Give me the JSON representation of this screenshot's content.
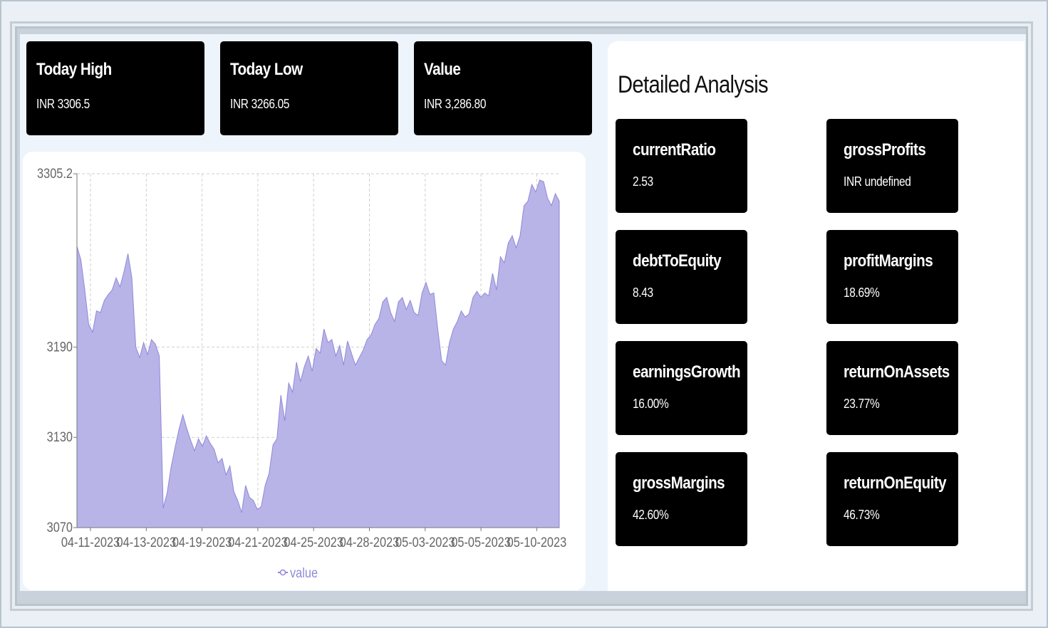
{
  "summary_cards": [
    {
      "title": "Today High",
      "value": "INR 3306.5"
    },
    {
      "title": "Today Low",
      "value": "INR 3266.05"
    },
    {
      "title": "Value",
      "value": "INR 3,286.80"
    }
  ],
  "analysis": {
    "title": "Detailed Analysis",
    "metrics": [
      {
        "label": "currentRatio",
        "value": "2.53"
      },
      {
        "label": "grossProfits",
        "value": "INR undefined"
      },
      {
        "label": "debtToEquity",
        "value": "8.43"
      },
      {
        "label": "profitMargins",
        "value": "18.69%"
      },
      {
        "label": "earningsGrowth",
        "value": "16.00%"
      },
      {
        "label": "returnOnAssets",
        "value": "23.77%"
      },
      {
        "label": "grossMargins",
        "value": "42.60%"
      },
      {
        "label": "returnOnEquity",
        "value": "46.73%"
      }
    ]
  },
  "colors": {
    "area_fill": "#b8b4e8",
    "area_stroke": "#8f88d8",
    "card_bg": "#000000"
  },
  "chart_data": {
    "type": "area",
    "title": "",
    "xlabel": "",
    "ylabel": "",
    "y_ticks": [
      "3070",
      "3130",
      "3190",
      "3305.2"
    ],
    "ylim": [
      3070,
      3305.2
    ],
    "x_ticks": [
      "04-11-2023",
      "04-13-2023",
      "04-19-2023",
      "04-21-2023",
      "04-25-2023",
      "04-28-2023",
      "05-03-2023",
      "05-05-2023",
      "05-10-2023"
    ],
    "grid": true,
    "legend": "bottom",
    "series": [
      {
        "name": "value",
        "values": [
          3257,
          3248,
          3228,
          3205,
          3200,
          3214,
          3213,
          3221,
          3225,
          3228,
          3236,
          3230,
          3240,
          3252,
          3236,
          3190,
          3183,
          3193,
          3185,
          3195,
          3192,
          3184,
          3083,
          3093,
          3110,
          3123,
          3135,
          3145,
          3136,
          3128,
          3121,
          3129,
          3124,
          3131,
          3126,
          3122,
          3113,
          3116,
          3105,
          3111,
          3094,
          3088,
          3080,
          3098,
          3090,
          3088,
          3082,
          3084,
          3098,
          3106,
          3125,
          3129,
          3158,
          3141,
          3166,
          3160,
          3180,
          3167,
          3177,
          3184,
          3174,
          3189,
          3186,
          3202,
          3193,
          3195,
          3184,
          3191,
          3178,
          3194,
          3186,
          3178,
          3183,
          3188,
          3195,
          3198,
          3205,
          3209,
          3220,
          3223,
          3213,
          3207,
          3220,
          3223,
          3215,
          3221,
          3213,
          3211,
          3226,
          3233,
          3225,
          3226,
          3202,
          3181,
          3178,
          3193,
          3202,
          3207,
          3214,
          3210,
          3212,
          3223,
          3227,
          3223,
          3226,
          3224,
          3239,
          3228,
          3250,
          3246,
          3259,
          3264,
          3256,
          3264,
          3284,
          3287,
          3298,
          3293,
          3301,
          3300,
          3289,
          3284,
          3292,
          3287
        ]
      }
    ]
  }
}
